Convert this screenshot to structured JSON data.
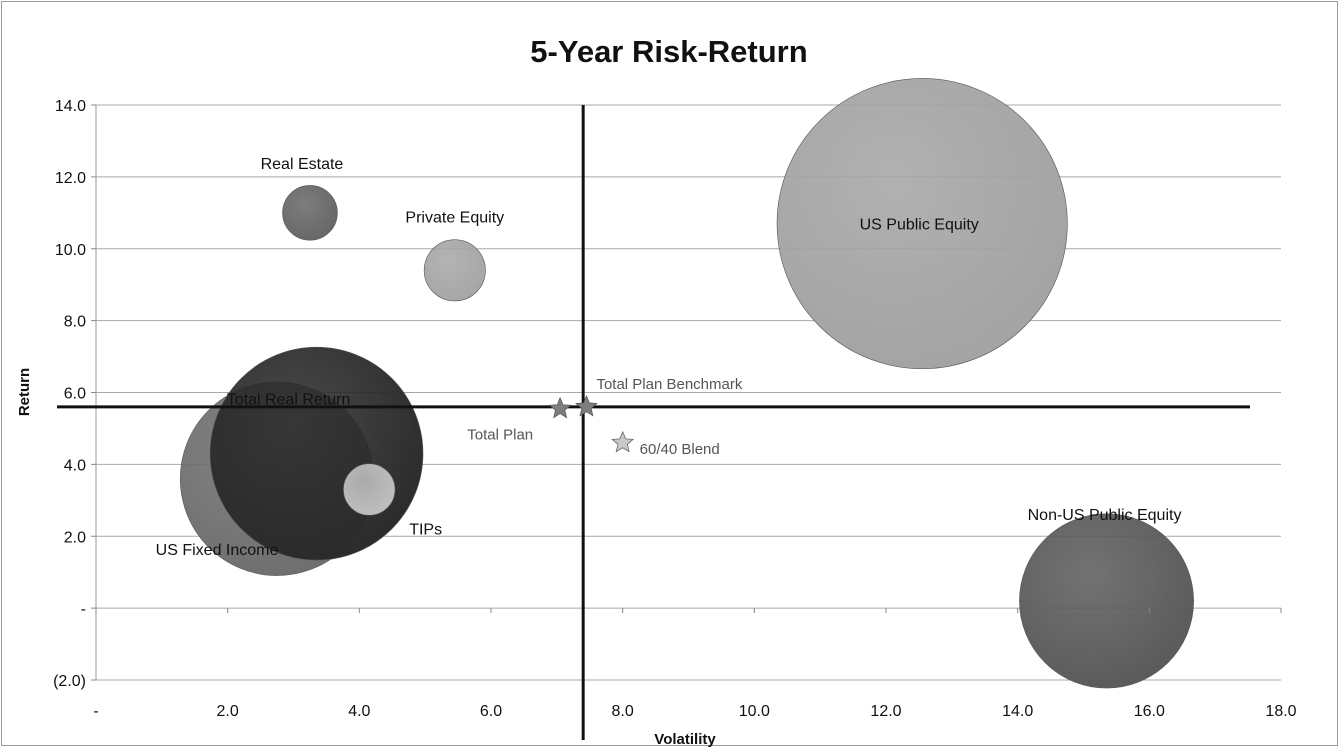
{
  "chart_data": {
    "type": "bubble",
    "title": "5-Year Risk-Return",
    "xlabel": "Volatility",
    "ylabel": "Return",
    "xlim": [
      0,
      18
    ],
    "ylim": [
      -2,
      14
    ],
    "grid": "horizontal",
    "x_ticks": [
      {
        "value": 0,
        "label": "-"
      },
      {
        "value": 2,
        "label": "2.0"
      },
      {
        "value": 4,
        "label": "4.0"
      },
      {
        "value": 6,
        "label": "6.0"
      },
      {
        "value": 8,
        "label": "8.0"
      },
      {
        "value": 10,
        "label": "10.0"
      },
      {
        "value": 12,
        "label": "12.0"
      },
      {
        "value": 14,
        "label": "14.0"
      },
      {
        "value": 16,
        "label": "16.0"
      },
      {
        "value": 18,
        "label": "18.0"
      }
    ],
    "y_ticks": [
      {
        "value": -2,
        "label": "(2.0)"
      },
      {
        "value": 0,
        "label": "-"
      },
      {
        "value": 2,
        "label": "2.0"
      },
      {
        "value": 4,
        "label": "4.0"
      },
      {
        "value": 6,
        "label": "6.0"
      },
      {
        "value": 8,
        "label": "8.0"
      },
      {
        "value": 10,
        "label": "10.0"
      },
      {
        "value": 12,
        "label": "12.0"
      },
      {
        "value": 14,
        "label": "14.0"
      }
    ],
    "reference_lines": {
      "x": 7.4,
      "y": 5.6
    },
    "bubbles": [
      {
        "name": "US Fixed Income",
        "x": 2.75,
        "y": 3.6,
        "size": 3.0,
        "color": "#6e6e6e"
      },
      {
        "name": "Total Real Return",
        "x": 3.35,
        "y": 4.3,
        "size": 3.3,
        "color": "#2a2a2a"
      },
      {
        "name": "TIPs",
        "x": 4.15,
        "y": 3.3,
        "size": 0.8,
        "color": "#c0c0c0"
      },
      {
        "name": "Real Estate",
        "x": 3.25,
        "y": 11.0,
        "size": 0.85,
        "color": "#666666"
      },
      {
        "name": "Private Equity",
        "x": 5.45,
        "y": 9.4,
        "size": 0.95,
        "color": "#a6a6a6"
      },
      {
        "name": "US Public Equity",
        "x": 12.55,
        "y": 10.7,
        "size": 4.5,
        "color": "#a3a3a3"
      },
      {
        "name": "Non-US Public Equity",
        "x": 15.35,
        "y": 0.2,
        "size": 2.7,
        "color": "#5a5a5a"
      }
    ],
    "markers": [
      {
        "name": "Total Plan",
        "x": 7.05,
        "y": 5.55,
        "color": "#7d7d7d"
      },
      {
        "name": "Total Plan Benchmark",
        "x": 7.45,
        "y": 5.6,
        "color": "#7d7d7d"
      },
      {
        "name": "60/40 Blend",
        "x": 8.0,
        "y": 4.6,
        "color": "#c8c8c8"
      }
    ]
  }
}
